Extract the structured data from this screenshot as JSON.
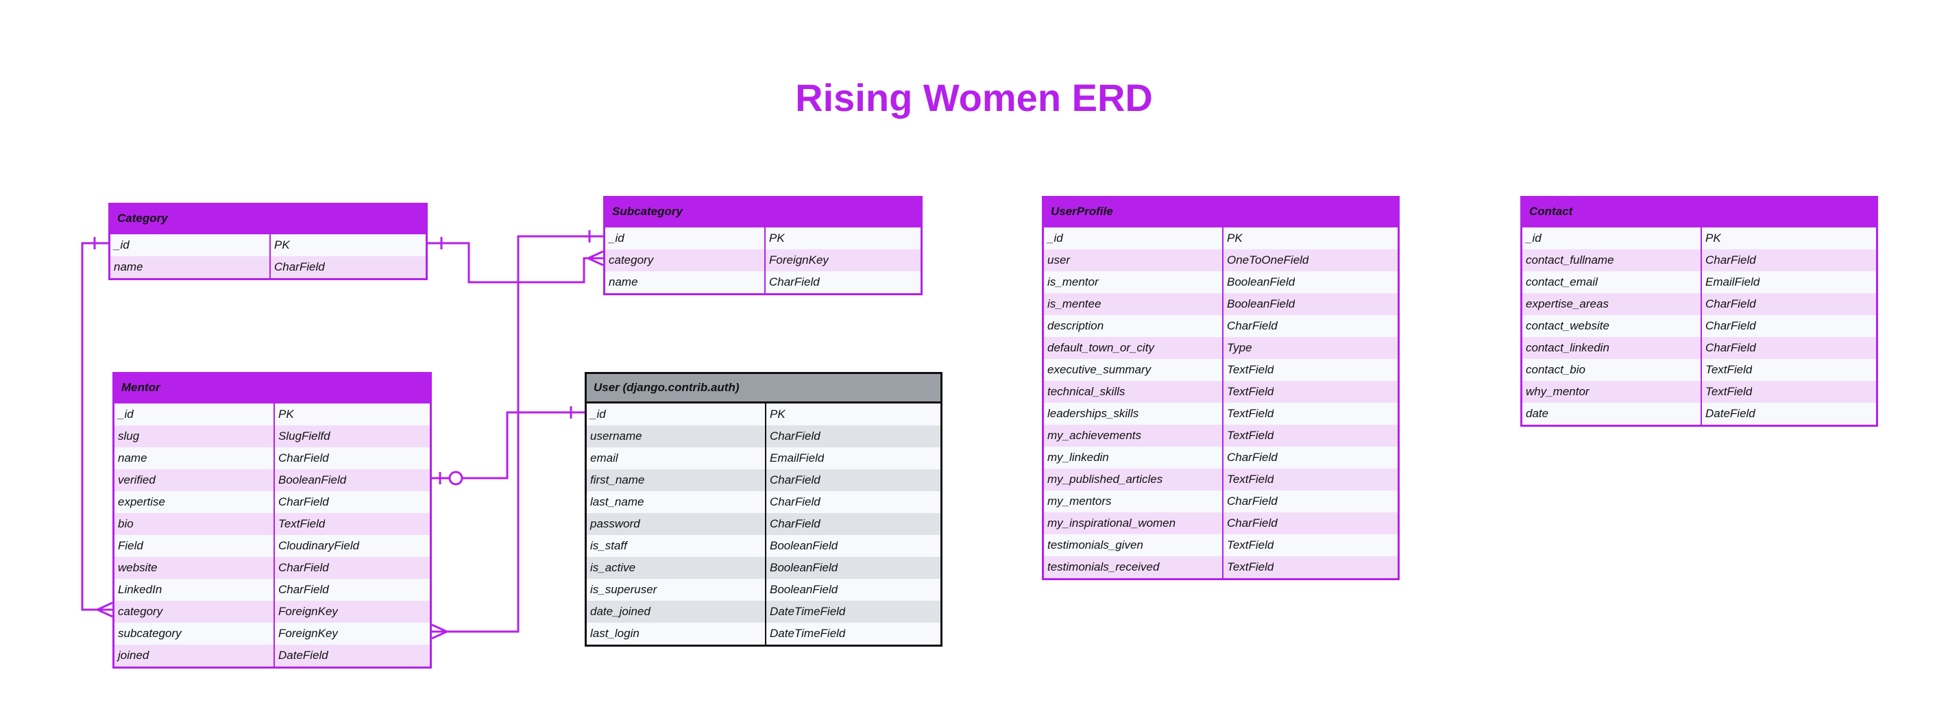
{
  "title": "Rising Women ERD",
  "colors": {
    "accent": "#b521ea",
    "title": "#b521ea",
    "user_header": "#9aa0a6"
  },
  "entities": [
    {
      "id": "category",
      "name": "Category",
      "theme": "purple",
      "fields": [
        [
          "_id",
          "PK"
        ],
        [
          "name",
          "CharField"
        ]
      ]
    },
    {
      "id": "subcategory",
      "name": "Subcategory",
      "theme": "purple",
      "fields": [
        [
          "_id",
          "PK"
        ],
        [
          "category",
          "ForeignKey"
        ],
        [
          "name",
          "CharField"
        ]
      ]
    },
    {
      "id": "userprofile",
      "name": "UserProfile",
      "theme": "purple",
      "fields": [
        [
          "_id",
          "PK"
        ],
        [
          "user",
          "OneToOneField"
        ],
        [
          "is_mentor",
          "BooleanField"
        ],
        [
          "is_mentee",
          "BooleanField"
        ],
        [
          "description",
          "CharField"
        ],
        [
          "default_town_or_city",
          "Type"
        ],
        [
          "executive_summary",
          "TextField"
        ],
        [
          "technical_skills",
          "TextField"
        ],
        [
          "leaderships_skills",
          "TextField"
        ],
        [
          "my_achievements",
          "TextField"
        ],
        [
          "my_linkedin",
          "CharField"
        ],
        [
          "my_published_articles",
          "TextField"
        ],
        [
          "my_mentors",
          "CharField"
        ],
        [
          "my_inspirational_women",
          "CharField"
        ],
        [
          "testimonials_given",
          "TextField"
        ],
        [
          "testimonials_received",
          "TextField"
        ]
      ]
    },
    {
      "id": "contact",
      "name": "Contact",
      "theme": "purple",
      "fields": [
        [
          "_id",
          "PK"
        ],
        [
          "contact_fullname",
          "CharField"
        ],
        [
          "contact_email",
          "EmailField"
        ],
        [
          "expertise_areas",
          "CharField"
        ],
        [
          "contact_website",
          "CharField"
        ],
        [
          "contact_linkedin",
          "CharField"
        ],
        [
          "contact_bio",
          "TextField"
        ],
        [
          "why_mentor",
          "TextField"
        ],
        [
          "date",
          "DateField"
        ]
      ]
    },
    {
      "id": "mentor",
      "name": "Mentor",
      "theme": "purple",
      "fields": [
        [
          "_id",
          "PK"
        ],
        [
          "slug",
          "SlugFielfd"
        ],
        [
          "name",
          "CharField"
        ],
        [
          "verified",
          "BooleanField"
        ],
        [
          "expertise",
          "CharField"
        ],
        [
          "bio",
          "TextField"
        ],
        [
          "Field",
          "CloudinaryField"
        ],
        [
          "website",
          "CharField"
        ],
        [
          "LinkedIn",
          "CharField"
        ],
        [
          "category",
          "ForeignKey"
        ],
        [
          "subcategory",
          "ForeignKey"
        ],
        [
          "joined",
          "DateField"
        ]
      ]
    },
    {
      "id": "user",
      "name": "User (django.contrib.auth)",
      "theme": "gray",
      "fields": [
        [
          "_id",
          "PK"
        ],
        [
          "username",
          "CharField"
        ],
        [
          "email",
          "EmailField"
        ],
        [
          "first_name",
          "CharField"
        ],
        [
          "last_name",
          "CharField"
        ],
        [
          "password",
          "CharField"
        ],
        [
          "is_staff",
          "BooleanField"
        ],
        [
          "is_active",
          "BooleanField"
        ],
        [
          "is_superuser",
          "BooleanField"
        ],
        [
          "date_joined",
          "DateTimeField"
        ],
        [
          "last_login",
          "DateTimeField"
        ]
      ]
    }
  ],
  "relationships": [
    {
      "from": "category._id",
      "to": "subcategory.category",
      "type": "one-to-many"
    },
    {
      "from": "category._id",
      "to": "mentor.category",
      "type": "one-to-many"
    },
    {
      "from": "subcategory._id",
      "to": "mentor.subcategory",
      "type": "one-to-many"
    },
    {
      "from": "user._id",
      "to": "mentor.verified",
      "type": "one-to-zero-or-one"
    }
  ]
}
